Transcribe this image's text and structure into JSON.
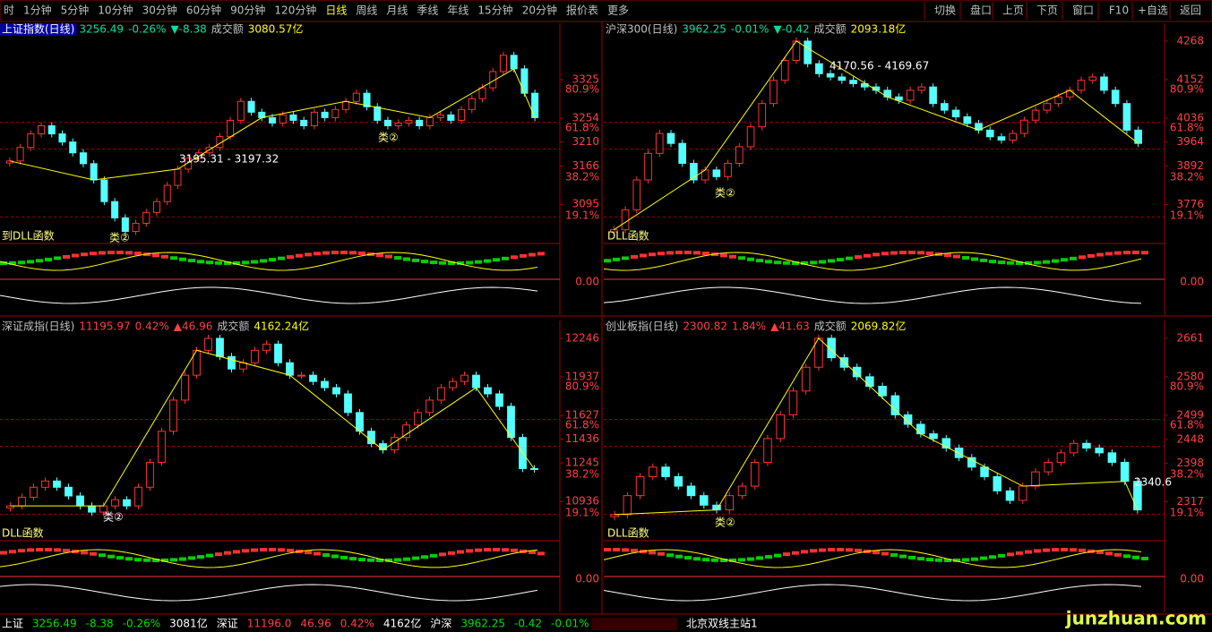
{
  "toolbar": {
    "periods": [
      "时",
      "1分钟",
      "5分钟",
      "10分钟",
      "30分钟",
      "60分钟",
      "90分钟",
      "120分钟",
      "日线",
      "周线",
      "月线",
      "季线",
      "年线",
      "15分钟",
      "20分钟",
      "报价表",
      "更多"
    ],
    "buttons": [
      "切换",
      "盘口",
      "上页",
      "下页",
      "窗口",
      "F10",
      "+自选",
      "返回"
    ]
  },
  "panels": [
    {
      "name": "上证指数(日线)",
      "price": 3256.49,
      "change_pct": "-0.26%",
      "change": "▼-8.38",
      "turnover_label": "成交额",
      "turnover": "3080.57亿",
      "trend": "down",
      "ylim": [
        3026,
        3406
      ],
      "yticks": [
        3325,
        3254,
        3210,
        3166,
        3095
      ],
      "fib_labels": [
        "80.9%",
        "61.8%",
        "38.2%",
        "19.1%"
      ],
      "indicator_zero": "0.00",
      "notes": [
        "3195.31 - 3197.32",
        "类②",
        "类②",
        "到DLL函数"
      ],
      "closes": [
        3175,
        3200,
        3225,
        3240,
        3225,
        3210,
        3190,
        3170,
        3140,
        3100,
        3070,
        3045,
        3060,
        3080,
        3100,
        3130,
        3160,
        3180,
        3190,
        3200,
        3220,
        3250,
        3285,
        3265,
        3255,
        3245,
        3260,
        3250,
        3240,
        3265,
        3255,
        3270,
        3285,
        3300,
        3275,
        3250,
        3240,
        3245,
        3250,
        3240,
        3255,
        3260,
        3250,
        3270,
        3290,
        3310,
        3340,
        3370,
        3345,
        3300,
        3255
      ]
    },
    {
      "name": "沪深300(日线)",
      "price": 3962.25,
      "change_pct": "-0.01%",
      "change": "▼-0.42",
      "turnover_label": "成交额",
      "turnover": "2093.18亿",
      "trend": "down",
      "ylim": [
        3664,
        4284
      ],
      "yticks": [
        4268,
        4152,
        4036,
        3964,
        3892,
        3776
      ],
      "fib_labels": [
        "80.9%",
        "61.8%",
        "38.2%",
        "19.1%"
      ],
      "indicator_zero": "0.00",
      "notes": [
        "4170.56 - 4169.67",
        "类②",
        "DLL函数"
      ],
      "closes": [
        3700,
        3760,
        3850,
        3930,
        3990,
        3960,
        3900,
        3850,
        3880,
        3860,
        3900,
        3950,
        4010,
        4080,
        4150,
        4210,
        4268,
        4200,
        4170,
        4160,
        4150,
        4140,
        4130,
        4120,
        4100,
        4090,
        4120,
        4130,
        4080,
        4060,
        4040,
        4020,
        4000,
        3980,
        3970,
        3990,
        4030,
        4060,
        4080,
        4100,
        4120,
        4150,
        4160,
        4120,
        4080,
        4000,
        3960
      ]
    },
    {
      "name": "深证成指(日线)",
      "price": 11195.97,
      "change_pct": "0.42%",
      "change": "▲46.96",
      "turnover_label": "成交额",
      "turnover": "4162.24亿",
      "trend": "up",
      "ylim": [
        10635,
        12289
      ],
      "yticks": [
        12246,
        11937,
        11627,
        11436,
        11245,
        10936
      ],
      "fib_labels": [
        "80.9%",
        "61.8%",
        "38.2%",
        "19.1%"
      ],
      "indicator_zero": "0.00",
      "notes": [
        "类②",
        "DLL函数"
      ],
      "closes": [
        10900,
        10970,
        11050,
        11100,
        11050,
        10980,
        10900,
        10850,
        10900,
        10950,
        10900,
        11050,
        11250,
        11500,
        11750,
        11950,
        12150,
        12246,
        12100,
        12000,
        12050,
        12150,
        12200,
        12050,
        11950,
        11950,
        11900,
        11850,
        11800,
        11650,
        11500,
        11400,
        11350,
        11450,
        11550,
        11650,
        11750,
        11850,
        11900,
        11950,
        11850,
        11800,
        11700,
        11450,
        11200,
        11196
      ]
    },
    {
      "name": "创业板指(日线)",
      "price": 2300.82,
      "change_pct": "1.84%",
      "change": "▲41.63",
      "turnover_label": "成交额",
      "turnover": "2069.82亿",
      "trend": "up",
      "ylim": [
        2239,
        2672
      ],
      "yticks": [
        2661,
        2580,
        2499,
        2448,
        2398,
        2317
      ],
      "fib_labels": [
        "80.9%",
        "61.8%",
        "38.2%",
        "19.1%"
      ],
      "indicator_zero": "0.00",
      "notes": [
        "2340.6",
        "类②",
        "DLL函数"
      ],
      "closes": [
        2290,
        2330,
        2370,
        2390,
        2370,
        2350,
        2330,
        2310,
        2300,
        2330,
        2350,
        2400,
        2450,
        2500,
        2550,
        2600,
        2661,
        2620,
        2600,
        2580,
        2560,
        2540,
        2500,
        2480,
        2460,
        2450,
        2430,
        2410,
        2390,
        2370,
        2340,
        2320,
        2350,
        2380,
        2400,
        2420,
        2440,
        2430,
        2420,
        2400,
        2360,
        2300
      ]
    }
  ],
  "status_bar": {
    "items": [
      {
        "text": "上证",
        "color": "#ffffff"
      },
      {
        "text": "3256.49",
        "color": "#00e000"
      },
      {
        "text": "-8.38",
        "color": "#00e000"
      },
      {
        "text": "-0.26%",
        "color": "#00e000"
      },
      {
        "text": "3081亿",
        "color": "#ffffff"
      },
      {
        "text": "深证",
        "color": "#ffffff"
      },
      {
        "text": "11196.0",
        "color": "#ff4040"
      },
      {
        "text": "46.96",
        "color": "#ff4040"
      },
      {
        "text": "0.42%",
        "color": "#ff4040"
      },
      {
        "text": "4162亿",
        "color": "#ffffff"
      },
      {
        "text": "沪深",
        "color": "#ffffff"
      },
      {
        "text": "3962.25",
        "color": "#00e000"
      },
      {
        "text": "-0.42",
        "color": "#00e000"
      },
      {
        "text": "-0.01%",
        "color": "#00e000"
      },
      {
        "text": "2093亿",
        "color": "#ffffff"
      }
    ],
    "server": "北京双线主站1",
    "watermark": "junzhuan.com"
  }
}
